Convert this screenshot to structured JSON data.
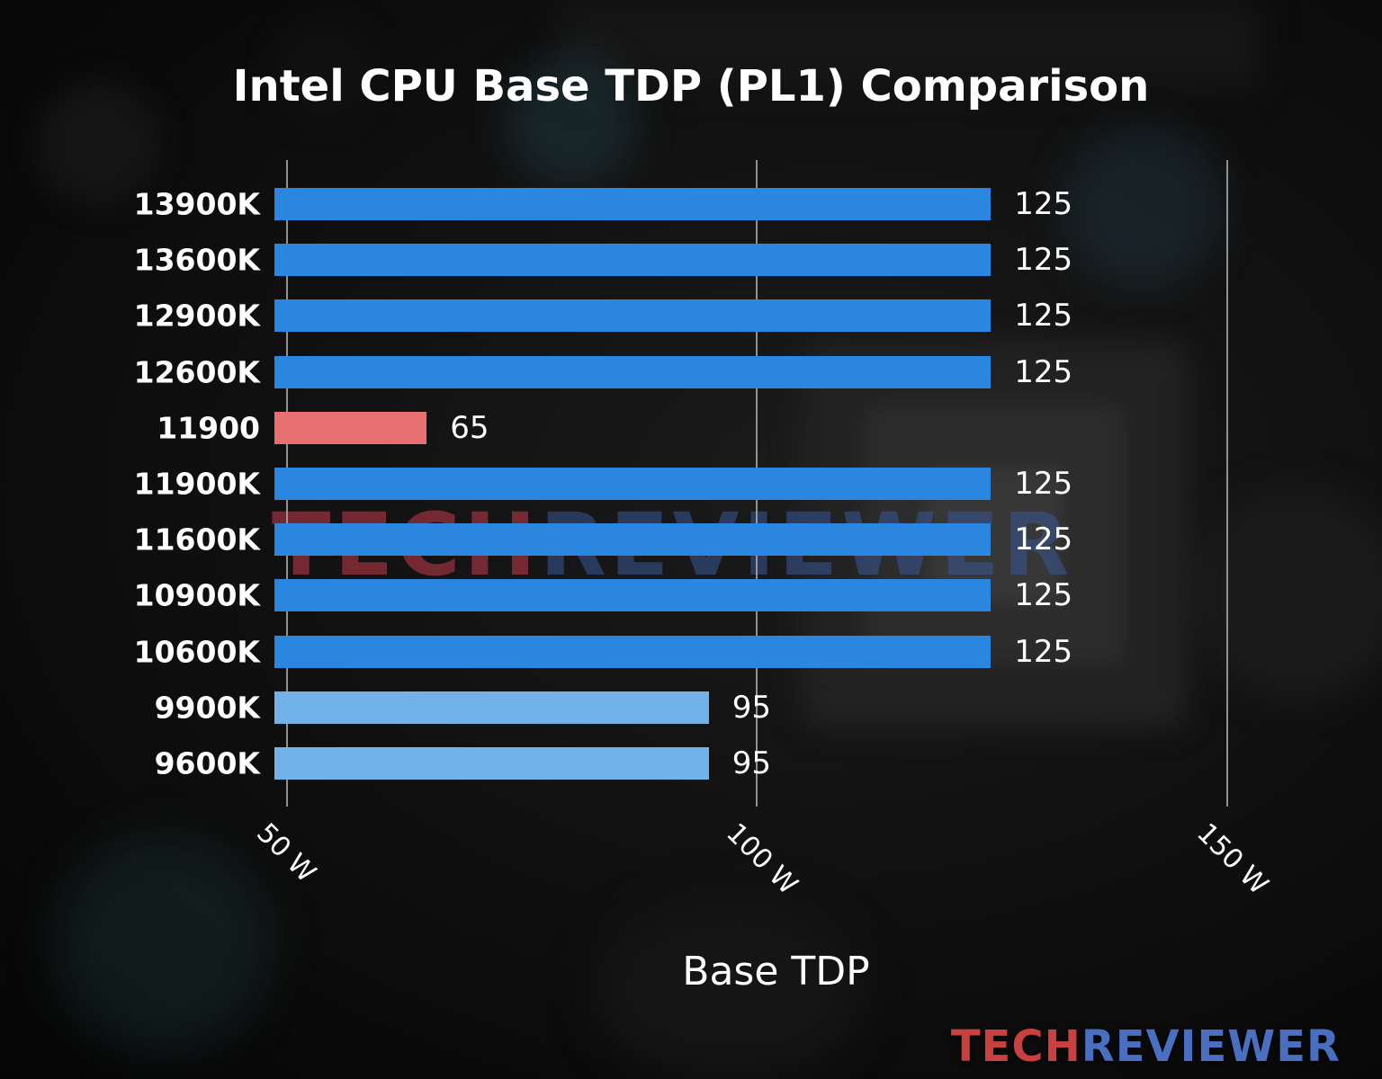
{
  "title": "Intel CPU Base TDP (PL1) Comparison",
  "watermark": {
    "tech": "TECH",
    "reviewer": "REVIEWER"
  },
  "logo": {
    "tech": "TECH",
    "reviewer": "REVIEWER"
  },
  "chart_data": {
    "type": "bar",
    "orientation": "horizontal",
    "title": "Intel CPU Base TDP (PL1) Comparison",
    "xlabel": "Base TDP",
    "ylabel": "",
    "categories": [
      "13900K",
      "13600K",
      "12900K",
      "12600K",
      "11900",
      "11900K",
      "11600K",
      "10900K",
      "10600K",
      "9900K",
      "9600K"
    ],
    "values": [
      125,
      125,
      125,
      125,
      65,
      125,
      125,
      125,
      125,
      95,
      95
    ],
    "value_labels": [
      "125",
      "125",
      "125",
      "125",
      "65",
      "125",
      "125",
      "125",
      "125",
      "95",
      "95"
    ],
    "unit": "W",
    "bar_colors": [
      "#2b86e0",
      "#2b86e0",
      "#2b86e0",
      "#2b86e0",
      "#e87070",
      "#2b86e0",
      "#2b86e0",
      "#2b86e0",
      "#2b86e0",
      "#72b2e8",
      "#72b2e8"
    ],
    "xticks": [
      {
        "value": 50,
        "label": "50 W"
      },
      {
        "value": 100,
        "label": "100 W"
      },
      {
        "value": 150,
        "label": "150 W"
      }
    ],
    "axis": {
      "min": 48.8,
      "max": 155.5
    },
    "grid": true,
    "legend": false,
    "colors": {
      "default_bar": "#2b86e0",
      "highlight_bar": "#e87070",
      "light_bar": "#72b2e8",
      "text": "#ffffff",
      "gridline": "#a8a8a8",
      "background": "#0d0d0d"
    }
  }
}
